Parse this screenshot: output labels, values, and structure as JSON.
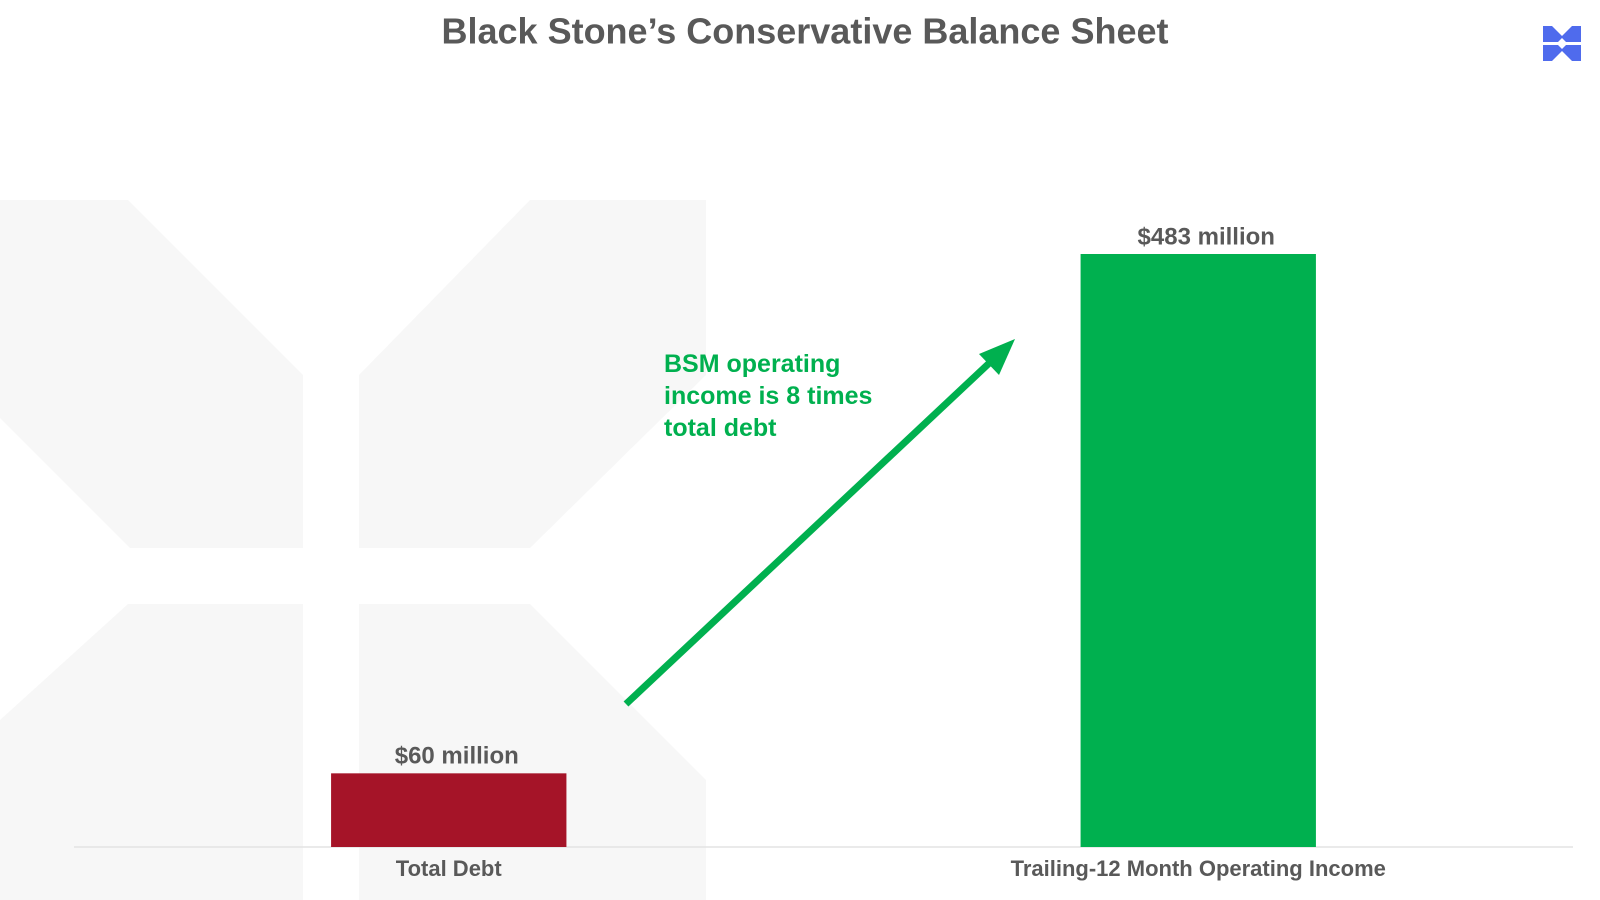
{
  "chart_data": {
    "type": "bar",
    "title": "Black Stone’s Conservative Balance Sheet",
    "categories": [
      "Total Debt",
      "Trailing-12 Month Operating Income"
    ],
    "values": [
      60,
      483
    ],
    "value_labels": [
      "$60 million",
      "$483 million"
    ],
    "colors": [
      "#a51428",
      "#00b04f"
    ],
    "annotation": "BSM operating income is 8 times total debt"
  }
}
